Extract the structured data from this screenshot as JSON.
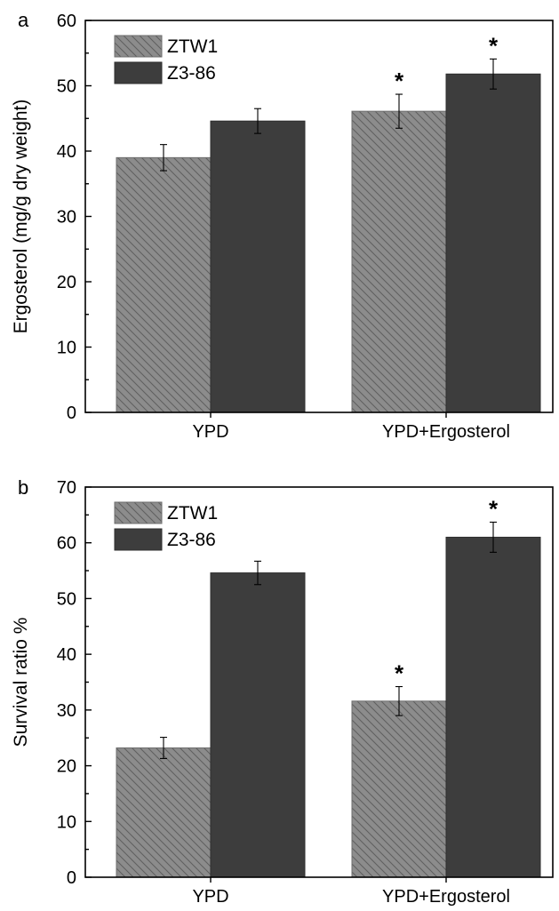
{
  "chart_data": [
    {
      "panel": "a",
      "type": "bar",
      "categories": [
        "YPD",
        "YPD+Ergosterol"
      ],
      "series": [
        {
          "name": "ZTW1",
          "values": [
            39.0,
            46.1
          ],
          "errors": [
            2.0,
            2.6
          ],
          "significant": [
            false,
            true
          ]
        },
        {
          "name": "Z3-86",
          "values": [
            44.6,
            51.8
          ],
          "errors": [
            1.9,
            2.3
          ],
          "significant": [
            false,
            true
          ]
        }
      ],
      "ylabel": "Ergosterol (mg/g dry weight)",
      "xlabel": "",
      "ylim": [
        0,
        60
      ],
      "yticks": [
        0,
        10,
        20,
        30,
        40,
        50,
        60
      ],
      "minor_step": 5,
      "significance_marker": "*",
      "legend_position": "top-left",
      "grid": false
    },
    {
      "panel": "b",
      "type": "bar",
      "categories": [
        "YPD",
        "YPD+Ergosterol"
      ],
      "series": [
        {
          "name": "ZTW1",
          "values": [
            23.2,
            31.6
          ],
          "errors": [
            1.9,
            2.6
          ],
          "significant": [
            false,
            true
          ]
        },
        {
          "name": "Z3-86",
          "values": [
            54.6,
            61.0
          ],
          "errors": [
            2.1,
            2.7
          ],
          "significant": [
            false,
            true
          ]
        }
      ],
      "ylabel": "Survival ratio %",
      "xlabel": "",
      "ylim": [
        0,
        70
      ],
      "yticks": [
        0,
        10,
        20,
        30,
        40,
        50,
        60,
        70
      ],
      "minor_step": 5,
      "significance_marker": "*",
      "legend_position": "top-left",
      "grid": false
    }
  ],
  "colors": {
    "ZTW1_fill": "#8c8c8c",
    "ZTW1_hatch": "#5a5a5a",
    "Z3-86_fill": "#3d3d3d",
    "axis": "#000000"
  }
}
